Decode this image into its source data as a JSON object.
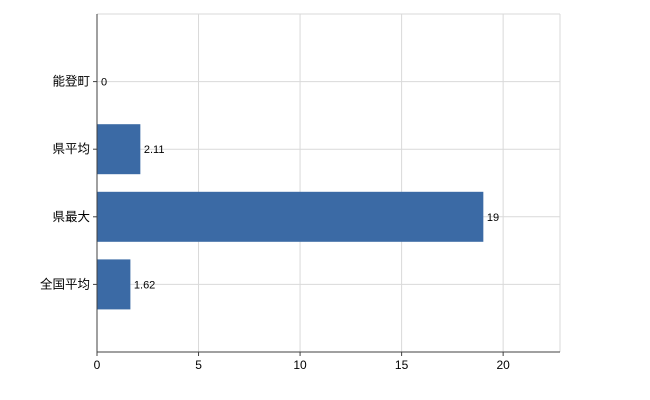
{
  "chart_data": {
    "type": "bar",
    "orientation": "horizontal",
    "title": "",
    "xlabel": "",
    "ylabel": "",
    "categories": [
      "能登町",
      "県平均",
      "県最大",
      "全国平均"
    ],
    "values": [
      0,
      2.11,
      19,
      1.62
    ],
    "value_labels": [
      "0",
      "2.11",
      "19",
      "1.62"
    ],
    "xlim": [
      0,
      22.8
    ],
    "xticks": [
      0,
      5,
      10,
      15,
      20
    ],
    "xtick_labels": [
      "0",
      "5",
      "10",
      "15",
      "20"
    ],
    "grid": true,
    "legend": "none",
    "colors": {
      "bar": "#3b6aa5",
      "grid": "#d9d9d9",
      "axis": "#404040",
      "text": "#000000",
      "background": "#ffffff"
    }
  }
}
